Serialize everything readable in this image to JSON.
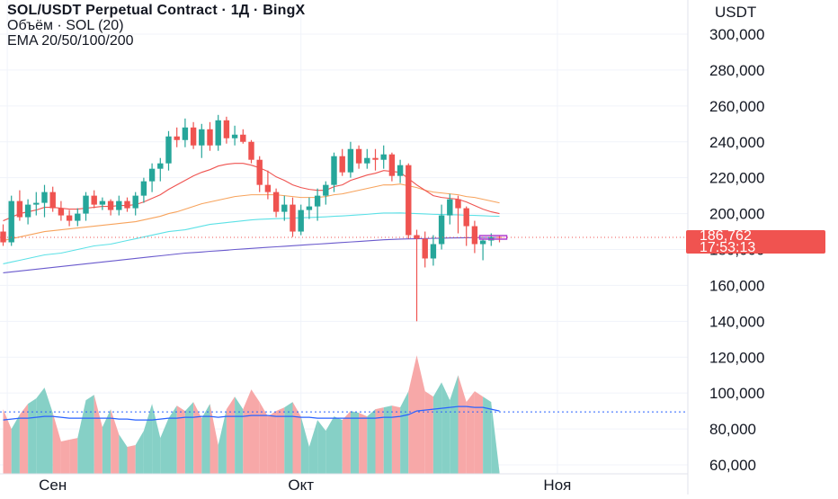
{
  "legend": {
    "title": "SOL/USDT Perpetual Contract · 1Д · BingX",
    "volume_line": "Объём · SOL (20)",
    "ema_line": "EMA 20/50/100/200"
  },
  "currency_label": "USDT",
  "last_price": {
    "value": "186,762",
    "countdown": "17:53:13",
    "color": "#f05350"
  },
  "colors": {
    "up": "#26a69a",
    "down": "#ef5350",
    "ema20": "#ef5350",
    "ema50": "#f7a35c",
    "ema100": "#5ce1e6",
    "ema200": "#6a5acd",
    "volume_up": "#7fcdc3",
    "volume_down": "#f7a3a3",
    "volume_ma": "#2962ff",
    "hline": "#2962ff",
    "price_line": "#f05350"
  },
  "chart_data": {
    "type": "candlestick",
    "y_axis": {
      "ticks": [
        60000,
        80000,
        100000,
        120000,
        140000,
        160000,
        180000,
        200000,
        220000,
        240000,
        260000,
        280000,
        300000
      ],
      "tick_labels": [
        "60,000",
        "80,000",
        "100,000",
        "120,000",
        "140,000",
        "160,000",
        "180,000",
        "200,000",
        "220,000",
        "240,000",
        "260,000",
        "280,000",
        "300,000"
      ],
      "range": [
        56000,
        308000
      ]
    },
    "x_axis": {
      "labels": [
        {
          "text": "Сен",
          "index": 6
        },
        {
          "text": "Окт",
          "index": 36
        },
        {
          "text": "Ноя",
          "index": 67
        }
      ],
      "total_slots": 76
    },
    "price_line": 186762,
    "horizontal_line": 89500,
    "candles": [
      [
        190000,
        194000,
        182000,
        184000
      ],
      [
        184000,
        210000,
        182000,
        207000
      ],
      [
        207000,
        213000,
        196000,
        198000
      ],
      [
        198000,
        208000,
        194000,
        205000
      ],
      [
        205000,
        212000,
        199000,
        206000
      ],
      [
        206000,
        216000,
        198000,
        212000
      ],
      [
        212000,
        215000,
        201000,
        203000
      ],
      [
        203000,
        207000,
        196000,
        199000
      ],
      [
        199000,
        202000,
        193000,
        196000
      ],
      [
        196000,
        203000,
        193000,
        200000
      ],
      [
        200000,
        212000,
        196000,
        210000
      ],
      [
        210000,
        213000,
        203000,
        205000
      ],
      [
        205000,
        209000,
        202000,
        207000
      ],
      [
        207000,
        208000,
        199000,
        202000
      ],
      [
        202000,
        210000,
        199000,
        207000
      ],
      [
        207000,
        209000,
        201000,
        203000
      ],
      [
        203000,
        212000,
        199000,
        210000
      ],
      [
        210000,
        220000,
        206000,
        218000
      ],
      [
        218000,
        228000,
        212000,
        225000
      ],
      [
        225000,
        231000,
        218000,
        228000
      ],
      [
        228000,
        246000,
        224000,
        243000
      ],
      [
        243000,
        248000,
        237000,
        241000
      ],
      [
        241000,
        253000,
        237000,
        248000
      ],
      [
        248000,
        251000,
        236000,
        238000
      ],
      [
        238000,
        250000,
        231000,
        247000
      ],
      [
        247000,
        251000,
        235000,
        238000
      ],
      [
        238000,
        255000,
        235000,
        252000
      ],
      [
        252000,
        254000,
        239000,
        242000
      ],
      [
        242000,
        249000,
        238000,
        244000
      ],
      [
        244000,
        247000,
        239000,
        240000
      ],
      [
        240000,
        241000,
        228000,
        230000
      ],
      [
        230000,
        232000,
        212000,
        216000
      ],
      [
        216000,
        224000,
        208000,
        212000
      ],
      [
        212000,
        214000,
        198000,
        201000
      ],
      [
        201000,
        210000,
        196000,
        205000
      ],
      [
        205000,
        209000,
        187000,
        190000
      ],
      [
        190000,
        205000,
        188000,
        202000
      ],
      [
        202000,
        209000,
        197000,
        204000
      ],
      [
        204000,
        214000,
        196000,
        210000
      ],
      [
        210000,
        218000,
        205000,
        216000
      ],
      [
        216000,
        234000,
        212000,
        232000
      ],
      [
        232000,
        236000,
        221000,
        223000
      ],
      [
        223000,
        240000,
        220000,
        236000
      ],
      [
        236000,
        238000,
        225000,
        228000
      ],
      [
        228000,
        236000,
        225000,
        231000
      ],
      [
        231000,
        236000,
        224000,
        230000
      ],
      [
        230000,
        238000,
        225000,
        233000
      ],
      [
        233000,
        234000,
        218000,
        221000
      ],
      [
        221000,
        230000,
        217000,
        227000
      ],
      [
        227000,
        228000,
        186000,
        188000
      ],
      [
        188000,
        191000,
        140000,
        186000
      ],
      [
        186000,
        190000,
        170000,
        175000
      ],
      [
        175000,
        188000,
        171000,
        183000
      ],
      [
        183000,
        205000,
        180000,
        199000
      ],
      [
        199000,
        211000,
        194000,
        208000
      ],
      [
        208000,
        210000,
        189000,
        203000
      ],
      [
        203000,
        204000,
        182000,
        193000
      ],
      [
        193000,
        196000,
        178000,
        183000
      ],
      [
        183000,
        186000,
        174000,
        185000
      ],
      [
        185000,
        189000,
        182000,
        187000
      ],
      [
        187000,
        188000,
        184000,
        186762
      ]
    ],
    "ema20": [
      196000,
      198000,
      200000,
      201000,
      202000,
      203500,
      203500,
      203000,
      202500,
      202500,
      203000,
      203500,
      204000,
      204000,
      204500,
      204500,
      205000,
      206500,
      208500,
      210500,
      213500,
      216000,
      218500,
      221000,
      223000,
      224500,
      226500,
      227500,
      228000,
      228000,
      227000,
      225500,
      223500,
      220500,
      218500,
      216000,
      214500,
      213500,
      213000,
      213000,
      215000,
      216000,
      218500,
      220000,
      221500,
      222500,
      224000,
      223500,
      223000,
      219500,
      216000,
      213000,
      210000,
      209000,
      208500,
      208000,
      206500,
      204500,
      202500,
      201000,
      200000
    ],
    "ema50": [
      185000,
      186000,
      187000,
      188000,
      189000,
      190000,
      190500,
      191000,
      191500,
      192000,
      192500,
      193000,
      193500,
      194000,
      194500,
      195000,
      195500,
      196500,
      197500,
      198500,
      200000,
      201000,
      202500,
      204000,
      205500,
      206500,
      207500,
      208500,
      209500,
      210000,
      210500,
      210500,
      210500,
      210500,
      210000,
      209500,
      209000,
      209000,
      209000,
      209500,
      210500,
      211000,
      212000,
      213000,
      214000,
      215000,
      216000,
      216000,
      216500,
      215500,
      214500,
      213000,
      212000,
      211500,
      211000,
      210500,
      209500,
      209000,
      208000,
      207000,
      206000
    ],
    "ema100": [
      172000,
      173000,
      174000,
      175000,
      176000,
      177000,
      177500,
      178000,
      179000,
      180000,
      181000,
      182000,
      182500,
      183000,
      184000,
      185000,
      186000,
      187000,
      188000,
      189000,
      190000,
      190500,
      191000,
      192000,
      193000,
      194000,
      194500,
      195000,
      195500,
      196000,
      196500,
      196800,
      197000,
      197200,
      197300,
      197500,
      197700,
      197800,
      198000,
      198200,
      198500,
      198700,
      199000,
      199300,
      199600,
      200000,
      200300,
      200300,
      200400,
      200200,
      200000,
      199800,
      199600,
      199500,
      199400,
      199300,
      199100,
      199000,
      198800,
      198600,
      198500
    ],
    "ema200": [
      167000,
      167500,
      168000,
      168500,
      169000,
      169500,
      170000,
      170500,
      171000,
      171500,
      172000,
      172500,
      173000,
      173500,
      174000,
      174500,
      175000,
      175500,
      176000,
      176500,
      177000,
      177500,
      178000,
      178300,
      178600,
      179000,
      179300,
      179600,
      180000,
      180300,
      180600,
      180900,
      181200,
      181500,
      181800,
      182100,
      182400,
      182700,
      183000,
      183300,
      183600,
      183900,
      184200,
      184500,
      184800,
      185100,
      185400,
      185600,
      185800,
      185900,
      186000,
      186100,
      186200,
      186300,
      186400,
      186500,
      186550,
      186600,
      186650,
      186700,
      186762
    ],
    "volume_levels": [
      88,
      81,
      85,
      72,
      93,
      101,
      71,
      71,
      97,
      98,
      75,
      83,
      87,
      74,
      70,
      89,
      79,
      72,
      71,
      93,
      92,
      88,
      90,
      89,
      92,
      91,
      75,
      92,
      91,
      96,
      98,
      100,
      91,
      83,
      100,
      92,
      90,
      72,
      83,
      75,
      79,
      81,
      89,
      90,
      88,
      89,
      91,
      86,
      94,
      85,
      100,
      87,
      102,
      97,
      93,
      90,
      88,
      86,
      90,
      91,
      78
    ],
    "volume_area_levels": [
      91,
      80,
      88,
      94,
      97,
      103,
      89,
      73,
      74,
      75,
      96,
      99,
      81,
      91,
      77,
      70,
      71,
      79,
      94,
      75,
      86,
      93,
      90,
      95,
      86,
      94,
      71,
      91,
      98,
      91,
      102,
      95,
      87,
      90,
      92,
      95,
      87,
      70,
      85,
      79,
      87,
      85,
      90,
      89,
      87,
      91,
      92,
      93,
      92,
      101,
      121,
      101,
      98,
      106,
      96,
      110,
      95,
      101,
      98,
      95,
      56
    ],
    "volume_ma": [
      85,
      85.5,
      86,
      86,
      86.5,
      87,
      87,
      86.5,
      86,
      86,
      86,
      86,
      86,
      86,
      85.5,
      85.5,
      85,
      85,
      85,
      85.5,
      86,
      86,
      86.5,
      86.5,
      87,
      87,
      86.5,
      87,
      87,
      87,
      87.5,
      87.5,
      87.5,
      87,
      87,
      87,
      86.5,
      86.5,
      86,
      86,
      86,
      86,
      86,
      86,
      86,
      86,
      86.5,
      86.5,
      87,
      88,
      90,
      90.5,
      91,
      91.5,
      92,
      92.5,
      92.5,
      92,
      92,
      91,
      90
    ]
  }
}
